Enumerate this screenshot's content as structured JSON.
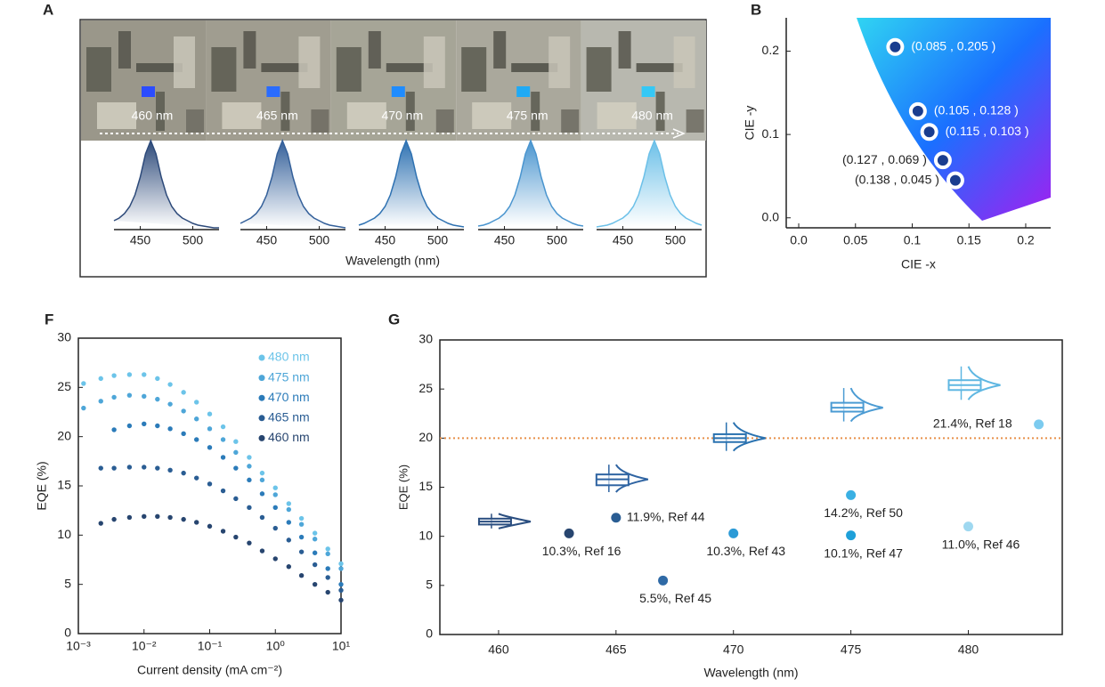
{
  "chart_data": [
    {
      "panel": "A",
      "type": "spectra",
      "xlabel": "Wavelength (nm)",
      "x": [
        425,
        430,
        435,
        440,
        445,
        450,
        455,
        460,
        465,
        470,
        475,
        480,
        485,
        490,
        495,
        500,
        505,
        510,
        515,
        520,
        525
      ],
      "xlim": [
        425,
        525
      ],
      "xticks": [
        450,
        500
      ],
      "series": [
        {
          "name": "460 nm",
          "color": "#2d4a7a",
          "values": [
            0.1,
            0.13,
            0.18,
            0.26,
            0.39,
            0.59,
            0.85,
            1,
            0.85,
            0.59,
            0.39,
            0.26,
            0.18,
            0.13,
            0.1,
            0.07,
            0.05,
            0.04,
            0.03,
            0.02,
            0.02
          ]
        },
        {
          "name": "465 nm",
          "color": "#34609a",
          "values": [
            0.07,
            0.1,
            0.13,
            0.18,
            0.26,
            0.39,
            0.59,
            0.85,
            1,
            0.85,
            0.59,
            0.39,
            0.26,
            0.18,
            0.13,
            0.1,
            0.07,
            0.05,
            0.04,
            0.03,
            0.02
          ]
        },
        {
          "name": "470 nm",
          "color": "#2f72b2",
          "values": [
            0.05,
            0.07,
            0.1,
            0.13,
            0.18,
            0.26,
            0.39,
            0.59,
            0.85,
            1,
            0.85,
            0.59,
            0.39,
            0.26,
            0.18,
            0.13,
            0.1,
            0.07,
            0.05,
            0.04,
            0.03
          ]
        },
        {
          "name": "475 nm",
          "color": "#4a95cf",
          "values": [
            0.04,
            0.05,
            0.07,
            0.1,
            0.13,
            0.18,
            0.26,
            0.39,
            0.59,
            0.85,
            1,
            0.85,
            0.59,
            0.39,
            0.26,
            0.18,
            0.13,
            0.1,
            0.07,
            0.05,
            0.04
          ]
        },
        {
          "name": "480 nm",
          "color": "#6cc0e8",
          "values": [
            0.03,
            0.04,
            0.05,
            0.07,
            0.1,
            0.13,
            0.18,
            0.26,
            0.39,
            0.59,
            0.85,
            1,
            0.85,
            0.59,
            0.39,
            0.26,
            0.18,
            0.13,
            0.1,
            0.07,
            0.05
          ]
        }
      ]
    },
    {
      "panel": "B",
      "type": "scatter",
      "xlabel": "CIE -x",
      "ylabel": "CIE -y",
      "x": [
        0.085,
        0.105,
        0.115,
        0.127,
        0.138
      ],
      "values": [
        0.205,
        0.128,
        0.103,
        0.069,
        0.045
      ],
      "value_labels": [
        "(0.085 , 0.205 )",
        "(0.105 , 0.128 )",
        "(0.115 , 0.103 )",
        "(0.127 , 0.069 )",
        "(0.138 , 0.045 )"
      ],
      "color": "#1a3d8f",
      "xlim": [
        -0.011,
        0.222
      ],
      "xticks": [
        {
          "value": 0,
          "label": "0.0"
        },
        0.05,
        0.1,
        0.15,
        0.2
      ],
      "ylim": [
        -0.012,
        0.24
      ],
      "yticks": [
        {
          "value": 0,
          "label": "0.0"
        },
        0.1,
        0.2
      ]
    },
    {
      "panel": "F",
      "type": "scatter",
      "xscale": "log",
      "xlabel": "Current density (mA cm⁻²)",
      "ylabel": "EQE (%)",
      "x": [
        0.0012,
        0.0022,
        0.0035,
        0.006,
        0.01,
        0.016,
        0.025,
        0.04,
        0.063,
        0.1,
        0.16,
        0.25,
        0.4,
        0.63,
        1,
        1.6,
        2.5,
        4,
        6.3,
        10
      ],
      "xlim": [
        0.001,
        10
      ],
      "xticks": [
        {
          "value": 0.001,
          "label": "10⁻³"
        },
        {
          "value": 0.01,
          "label": "10⁻²"
        },
        {
          "value": 0.1,
          "label": "10⁻¹"
        },
        {
          "value": 1,
          "label": "10⁰"
        },
        {
          "value": 10,
          "label": "10¹"
        }
      ],
      "ylim": [
        0,
        30
      ],
      "yticks": [
        0,
        5,
        10,
        15,
        20,
        25,
        30
      ],
      "series": [
        {
          "name": "480 nm",
          "color": "#6cc4e9",
          "values": [
            25.4,
            25.9,
            26.2,
            26.3,
            26.3,
            25.9,
            25.3,
            24.5,
            23.5,
            22.3,
            21.0,
            19.5,
            17.9,
            16.3,
            14.8,
            13.2,
            11.7,
            10.2,
            8.6,
            7.1
          ]
        },
        {
          "name": "475 nm",
          "color": "#4ea6d8",
          "values": [
            22.9,
            23.6,
            24.0,
            24.2,
            24.1,
            23.8,
            23.3,
            22.6,
            21.8,
            20.8,
            19.7,
            18.4,
            17.0,
            15.6,
            14.1,
            12.6,
            11.1,
            9.6,
            8.1,
            6.6
          ]
        },
        {
          "name": "470 nm",
          "color": "#2b7bb9",
          "values": [
            null,
            null,
            20.7,
            21.1,
            21.3,
            21.1,
            20.8,
            20.3,
            19.7,
            18.9,
            17.9,
            16.8,
            15.6,
            14.2,
            12.8,
            11.3,
            9.8,
            8.2,
            6.6,
            5.0
          ]
        },
        {
          "name": "465 nm",
          "color": "#2a5d93",
          "values": [
            null,
            16.8,
            16.8,
            16.9,
            16.9,
            16.8,
            16.6,
            16.3,
            15.8,
            15.2,
            14.5,
            13.7,
            12.8,
            11.8,
            10.7,
            9.5,
            8.3,
            7.0,
            5.7,
            4.4
          ]
        },
        {
          "name": "460 nm",
          "color": "#27456f",
          "values": [
            null,
            11.2,
            11.6,
            11.8,
            11.9,
            11.9,
            11.8,
            11.6,
            11.3,
            10.9,
            10.4,
            9.8,
            9.2,
            8.4,
            7.6,
            6.8,
            5.9,
            5.0,
            4.2,
            3.4
          ]
        }
      ]
    },
    {
      "panel": "G",
      "type": "box",
      "xlabel": "Wavelength (nm)",
      "ylabel": "EQE (%)",
      "xlim": [
        457.5,
        484
      ],
      "xticks": [
        460,
        465,
        470,
        475,
        480
      ],
      "ylim": [
        0,
        30
      ],
      "yticks": [
        0,
        5,
        10,
        15,
        20,
        25,
        30
      ],
      "hline": 20,
      "hline_color": "#e8904a",
      "boxes": {
        "x": [
          460,
          465,
          470,
          475,
          480
        ],
        "mean": [
          11.5,
          15.8,
          20.0,
          23.1,
          25.4
        ],
        "q1": [
          11.2,
          15.2,
          19.6,
          22.7,
          24.9
        ],
        "q3": [
          11.8,
          16.3,
          20.4,
          23.6,
          25.9
        ],
        "min": [
          10.8,
          14.5,
          18.7,
          21.7,
          23.9
        ],
        "max": [
          12.3,
          17.3,
          21.6,
          25.1,
          27.3
        ],
        "colors": [
          "#2a4e80",
          "#2f64a2",
          "#2a72b0",
          "#4b9bd3",
          "#5fb7e2"
        ]
      },
      "references": {
        "x": [
          463,
          465,
          467,
          470,
          475,
          475,
          480,
          483
        ],
        "values": [
          10.3,
          11.9,
          5.5,
          10.3,
          14.2,
          10.1,
          11.0,
          21.4
        ],
        "value_labels": [
          "10.3%,  Ref 16",
          "11.9%, Ref 44",
          "5.5%,  Ref 45",
          "10.3%,  Ref 43",
          "14.2%,  Ref 50",
          "10.1%,  Ref 47",
          "11.0%, Ref 46",
          "21.4%, Ref 18"
        ],
        "colors": [
          "#27456f",
          "#2a5d93",
          "#2f6aa6",
          "#2b9ad6",
          "#3ab0e3",
          "#1ea0d9",
          "#9fd8f0",
          "#7ccbef"
        ]
      }
    }
  ]
}
